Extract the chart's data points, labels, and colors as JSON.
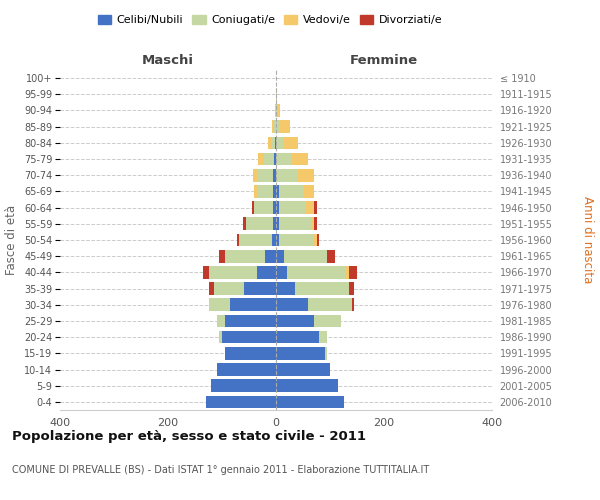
{
  "age_groups": [
    "0-4",
    "5-9",
    "10-14",
    "15-19",
    "20-24",
    "25-29",
    "30-34",
    "35-39",
    "40-44",
    "45-49",
    "50-54",
    "55-59",
    "60-64",
    "65-69",
    "70-74",
    "75-79",
    "80-84",
    "85-89",
    "90-94",
    "95-99",
    "100+"
  ],
  "birth_years": [
    "2006-2010",
    "2001-2005",
    "1996-2000",
    "1991-1995",
    "1986-1990",
    "1981-1985",
    "1976-1980",
    "1971-1975",
    "1966-1970",
    "1961-1965",
    "1956-1960",
    "1951-1955",
    "1946-1950",
    "1941-1945",
    "1936-1940",
    "1931-1935",
    "1926-1930",
    "1921-1925",
    "1916-1920",
    "1911-1915",
    "≤ 1910"
  ],
  "maschi": {
    "celibi": [
      130,
      120,
      110,
      95,
      100,
      95,
      85,
      60,
      35,
      20,
      8,
      6,
      5,
      5,
      5,
      3,
      2,
      0,
      0,
      0,
      0
    ],
    "coniugati": [
      0,
      0,
      0,
      0,
      5,
      15,
      40,
      55,
      90,
      75,
      60,
      50,
      35,
      30,
      30,
      20,
      8,
      4,
      1,
      0,
      0
    ],
    "vedovi": [
      0,
      0,
      0,
      0,
      0,
      0,
      0,
      0,
      0,
      0,
      0,
      0,
      0,
      5,
      8,
      10,
      5,
      4,
      0,
      0,
      0
    ],
    "divorziati": [
      0,
      0,
      0,
      0,
      0,
      0,
      0,
      10,
      10,
      10,
      5,
      5,
      5,
      0,
      0,
      0,
      0,
      0,
      0,
      0,
      0
    ]
  },
  "femmine": {
    "nubili": [
      125,
      115,
      100,
      90,
      80,
      70,
      60,
      35,
      20,
      15,
      5,
      5,
      5,
      5,
      0,
      0,
      0,
      0,
      0,
      0,
      0
    ],
    "coniugate": [
      0,
      0,
      0,
      5,
      15,
      50,
      80,
      100,
      110,
      80,
      65,
      60,
      50,
      45,
      40,
      30,
      15,
      8,
      2,
      1,
      0
    ],
    "vedove": [
      0,
      0,
      0,
      0,
      0,
      0,
      0,
      0,
      5,
      0,
      5,
      5,
      15,
      20,
      30,
      30,
      25,
      18,
      5,
      0,
      0
    ],
    "divorziate": [
      0,
      0,
      0,
      0,
      0,
      0,
      5,
      10,
      15,
      15,
      5,
      5,
      5,
      0,
      0,
      0,
      0,
      0,
      0,
      0,
      0
    ]
  },
  "color_celibi": "#4472c4",
  "color_coniugati": "#c5d8a4",
  "color_vedovi": "#f5c96a",
  "color_divorziati": "#c0392b",
  "title": "Popolazione per età, sesso e stato civile - 2011",
  "subtitle": "COMUNE DI PREVALLE (BS) - Dati ISTAT 1° gennaio 2011 - Elaborazione TUTTITALIA.IT",
  "ylabel_left": "Fasce di età",
  "ylabel_right": "Anni di nascita",
  "xlim": 400,
  "legend_labels": [
    "Celibi/Nubili",
    "Coniugati/e",
    "Vedovi/e",
    "Divorziati/e"
  ],
  "maschi_label": "Maschi",
  "femmine_label": "Femmine",
  "bg_color": "#ffffff",
  "grid_color": "#cccccc",
  "spine_color": "#cccccc"
}
